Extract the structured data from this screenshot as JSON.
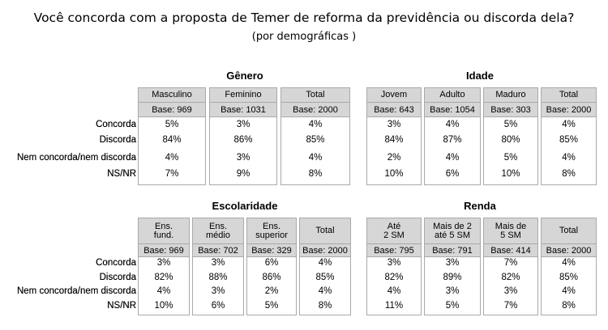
{
  "title": "Você concorda com a proposta de Temer de reforma da previdência ou discorda dela?",
  "subtitle": "(por demográficas )",
  "row_labels": [
    "Concorda",
    "Discorda",
    "Nem concorda/nem discorda",
    "NS/NR"
  ],
  "sections": [
    {
      "name": "Gênero",
      "columns": [
        {
          "header": "Masculino",
          "base": "Base: 969",
          "values": [
            "5%",
            "84%",
            "4%",
            "7%"
          ]
        },
        {
          "header": "Feminino",
          "base": "Base: 1031",
          "values": [
            "3%",
            "86%",
            "3%",
            "9%"
          ]
        },
        {
          "header": "Total",
          "base": "Base: 2000",
          "values": [
            "4%",
            "85%",
            "4%",
            "8%"
          ]
        }
      ]
    },
    {
      "name": "Idade",
      "columns": [
        {
          "header": "Jovem",
          "base": "Base: 643",
          "values": [
            "3%",
            "84%",
            "2%",
            "10%"
          ]
        },
        {
          "header": "Adulto",
          "base": "Base: 1054",
          "values": [
            "4%",
            "87%",
            "4%",
            "6%"
          ]
        },
        {
          "header": "Maduro",
          "base": "Base: 303",
          "values": [
            "5%",
            "80%",
            "5%",
            "10%"
          ]
        },
        {
          "header": "Total",
          "base": "Base: 2000",
          "values": [
            "4%",
            "85%",
            "4%",
            "8%"
          ]
        }
      ]
    },
    {
      "name": "Escolaridade",
      "columns": [
        {
          "header": "Ens.\nfund.",
          "base": "Base: 969",
          "values": [
            "3%",
            "82%",
            "4%",
            "10%"
          ]
        },
        {
          "header": "Ens.\nmédio",
          "base": "Base: 702",
          "values": [
            "3%",
            "88%",
            "3%",
            "6%"
          ]
        },
        {
          "header": "Ens.\nsuperior",
          "base": "Base: 329",
          "values": [
            "6%",
            "86%",
            "2%",
            "5%"
          ]
        },
        {
          "header": "Total",
          "base": "Base: 2000",
          "values": [
            "4%",
            "85%",
            "4%",
            "8%"
          ]
        }
      ]
    },
    {
      "name": "Renda",
      "columns": [
        {
          "header": "Até\n2 SM",
          "base": "Base: 795",
          "values": [
            "3%",
            "82%",
            "4%",
            "11%"
          ]
        },
        {
          "header": "Mais de 2\naté 5 SM",
          "base": "Base: 791",
          "values": [
            "3%",
            "89%",
            "3%",
            "5%"
          ]
        },
        {
          "header": "Mais de\n5 SM",
          "base": "Base: 414",
          "values": [
            "7%",
            "82%",
            "3%",
            "7%"
          ]
        },
        {
          "header": "Total",
          "base": "Base: 2000",
          "values": [
            "4%",
            "85%",
            "4%",
            "8%"
          ]
        }
      ]
    }
  ]
}
